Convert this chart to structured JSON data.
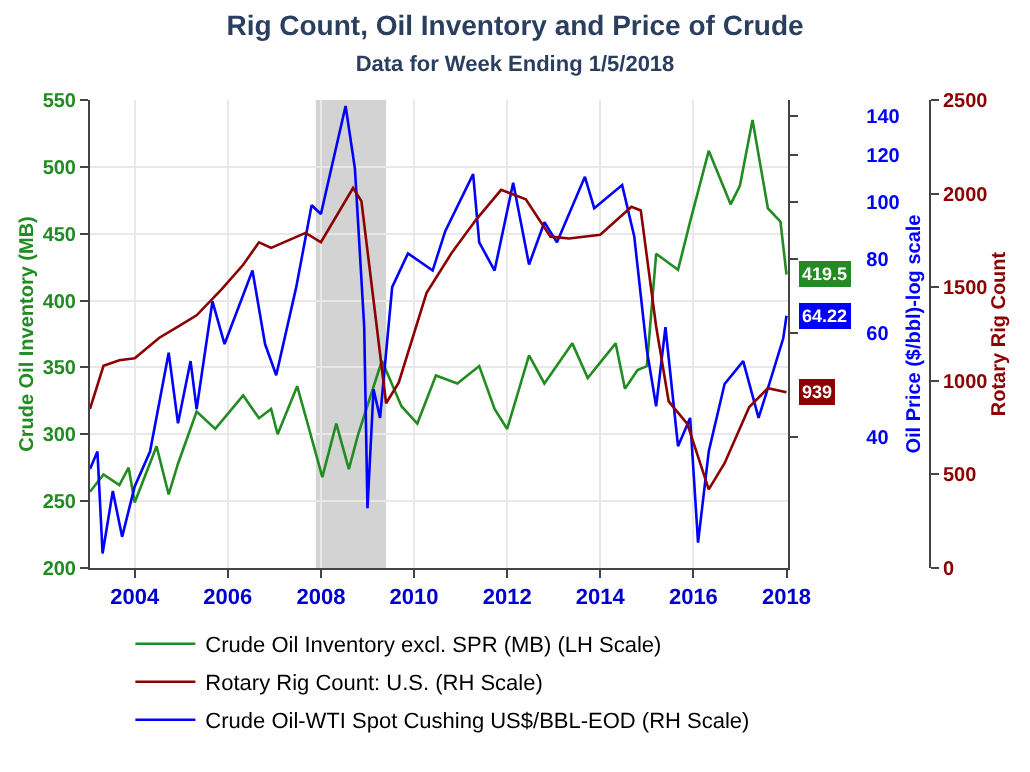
{
  "chart_data": {
    "type": "line",
    "title": "Rig Count, Oil Inventory and Price of Crude",
    "subtitle": "Data for Week Ending 1/5/2018",
    "ylabel": "Crude Oil Inventory (MB)",
    "y2label": "Oil Price ($/bbl)-log scale",
    "y3label": "Rotary Rig Count",
    "xlim": [
      2003.04,
      2018.04
    ],
    "xticks": [
      2004,
      2006,
      2008,
      2010,
      2012,
      2014,
      2016,
      2018
    ],
    "ylim": [
      200,
      550
    ],
    "yticks": [
      200,
      250,
      300,
      350,
      400,
      450,
      500,
      550
    ],
    "y2lim": [
      24,
      149
    ],
    "y2ticks": [
      40,
      60,
      80,
      100,
      120,
      140
    ],
    "y3lim": [
      0,
      2500
    ],
    "y3ticks": [
      0,
      500,
      1000,
      1500,
      2000,
      2500
    ],
    "log": "y2",
    "grid": true,
    "legend": "bottom",
    "line_style": "solid",
    "marker": "none",
    "bands": [
      {
        "axis": "x",
        "from": 2007.89,
        "to": 2009.4,
        "color": "#d3d3d3"
      }
    ],
    "series": [
      {
        "name": "Crude Oil Inventory excl. SPR (MB) (LH Scale)",
        "color": "#228b22",
        "axis": "y",
        "x": [
          2003.04,
          2003.33,
          2003.67,
          2003.87,
          2004.0,
          2004.47,
          2004.73,
          2004.93,
          2005.33,
          2005.73,
          2006.33,
          2006.67,
          2006.93,
          2007.07,
          2007.49,
          2007.73,
          2008.03,
          2008.33,
          2008.6,
          2008.8,
          2009.31,
          2009.73,
          2010.07,
          2010.47,
          2010.93,
          2011.4,
          2011.73,
          2012.0,
          2012.47,
          2012.8,
          2013.4,
          2013.73,
          2014.33,
          2014.53,
          2014.8,
          2015.0,
          2015.2,
          2015.67,
          2015.93,
          2016.33,
          2016.8,
          2017.0,
          2017.27,
          2017.6,
          2017.87,
          2018.0
        ],
        "values": [
          257,
          270,
          262,
          275,
          249,
          291,
          255,
          278,
          317,
          304,
          329,
          312,
          319,
          300,
          336,
          306,
          268,
          308,
          274,
          300,
          355,
          321,
          308,
          344,
          338,
          351,
          319,
          304,
          359,
          338,
          368,
          342,
          368,
          334,
          348,
          351,
          435,
          423,
          459,
          512,
          472,
          486,
          535,
          469,
          459,
          419.5
        ],
        "value_labels": [
          null,
          null,
          null,
          null,
          null,
          null,
          null,
          null,
          null,
          null,
          null,
          null,
          null,
          null,
          null,
          null,
          null,
          null,
          null,
          null,
          null,
          null,
          null,
          null,
          null,
          null,
          null,
          null,
          null,
          null,
          null,
          null,
          null,
          null,
          null,
          null,
          null,
          null,
          null,
          null,
          null,
          null,
          null,
          null,
          null,
          "419.5"
        ]
      },
      {
        "name": "Rotary Rig Count: U.S. (RH Scale)",
        "color": "#8b0000",
        "axis": "y3",
        "x": [
          2003.04,
          2003.33,
          2003.67,
          2004.0,
          2004.53,
          2004.93,
          2005.33,
          2005.87,
          2006.33,
          2006.67,
          2006.93,
          2007.67,
          2008.0,
          2008.69,
          2008.87,
          2009.4,
          2009.67,
          2010.27,
          2010.8,
          2011.33,
          2011.87,
          2012.4,
          2012.93,
          2013.33,
          2014.0,
          2014.67,
          2014.87,
          2015.2,
          2015.47,
          2015.87,
          2016.33,
          2016.67,
          2017.2,
          2017.6,
          2018.0
        ],
        "values": [
          850,
          1080,
          1110,
          1120,
          1230,
          1290,
          1350,
          1490,
          1620,
          1740,
          1710,
          1790,
          1740,
          2030,
          1960,
          880,
          990,
          1470,
          1680,
          1860,
          2020,
          1970,
          1770,
          1760,
          1780,
          1930,
          1910,
          1290,
          890,
          770,
          420,
          560,
          860,
          960,
          939
        ],
        "value_labels": [
          null,
          null,
          null,
          null,
          null,
          null,
          null,
          null,
          null,
          null,
          null,
          null,
          null,
          null,
          null,
          null,
          null,
          null,
          null,
          null,
          null,
          null,
          null,
          null,
          null,
          null,
          null,
          null,
          null,
          null,
          null,
          null,
          null,
          null,
          "939"
        ]
      },
      {
        "name": "Crude Oil-WTI Spot Cushing US$/BBL-EOD (RH Scale)",
        "color": "#0000ff",
        "axis": "y2",
        "x": [
          2003.04,
          2003.2,
          2003.31,
          2003.53,
          2003.73,
          2004.0,
          2004.33,
          2004.73,
          2004.93,
          2005.2,
          2005.33,
          2005.67,
          2005.93,
          2006.53,
          2006.8,
          2007.04,
          2007.47,
          2007.8,
          2008.0,
          2008.53,
          2008.73,
          2008.93,
          2009.0,
          2009.13,
          2009.27,
          2009.53,
          2009.87,
          2010.4,
          2010.67,
          2011.27,
          2011.4,
          2011.73,
          2012.13,
          2012.47,
          2012.8,
          2013.07,
          2013.67,
          2013.87,
          2014.47,
          2014.73,
          2015.0,
          2015.2,
          2015.4,
          2015.67,
          2015.93,
          2016.1,
          2016.33,
          2016.67,
          2017.07,
          2017.4,
          2017.67,
          2017.93,
          2018.0
        ],
        "values": [
          35.3,
          37.8,
          25.4,
          32.4,
          27.1,
          33.0,
          37.8,
          55.6,
          42.2,
          53.8,
          44.6,
          67.9,
          57.5,
          76.6,
          57.5,
          50.9,
          71.8,
          98.8,
          95.5,
          145.6,
          114,
          61.4,
          30.3,
          48.2,
          43.1,
          71.8,
          81.9,
          76.6,
          89.3,
          111.6,
          85.5,
          76.6,
          107.9,
          78.4,
          92.5,
          85.5,
          110.4,
          97.7,
          106.9,
          87.5,
          56.2,
          45.1,
          61.4,
          38.6,
          43.1,
          26.5,
          37.8,
          49.2,
          53.8,
          43.1,
          50.4,
          58.8,
          64.22
        ],
        "value_labels": [
          null,
          null,
          null,
          null,
          null,
          null,
          null,
          null,
          null,
          null,
          null,
          null,
          null,
          null,
          null,
          null,
          null,
          null,
          null,
          null,
          null,
          null,
          null,
          null,
          null,
          null,
          null,
          null,
          null,
          null,
          null,
          null,
          null,
          null,
          null,
          null,
          null,
          null,
          null,
          null,
          null,
          null,
          null,
          null,
          null,
          null,
          null,
          null,
          null,
          null,
          null,
          null,
          "64.22"
        ]
      }
    ]
  }
}
